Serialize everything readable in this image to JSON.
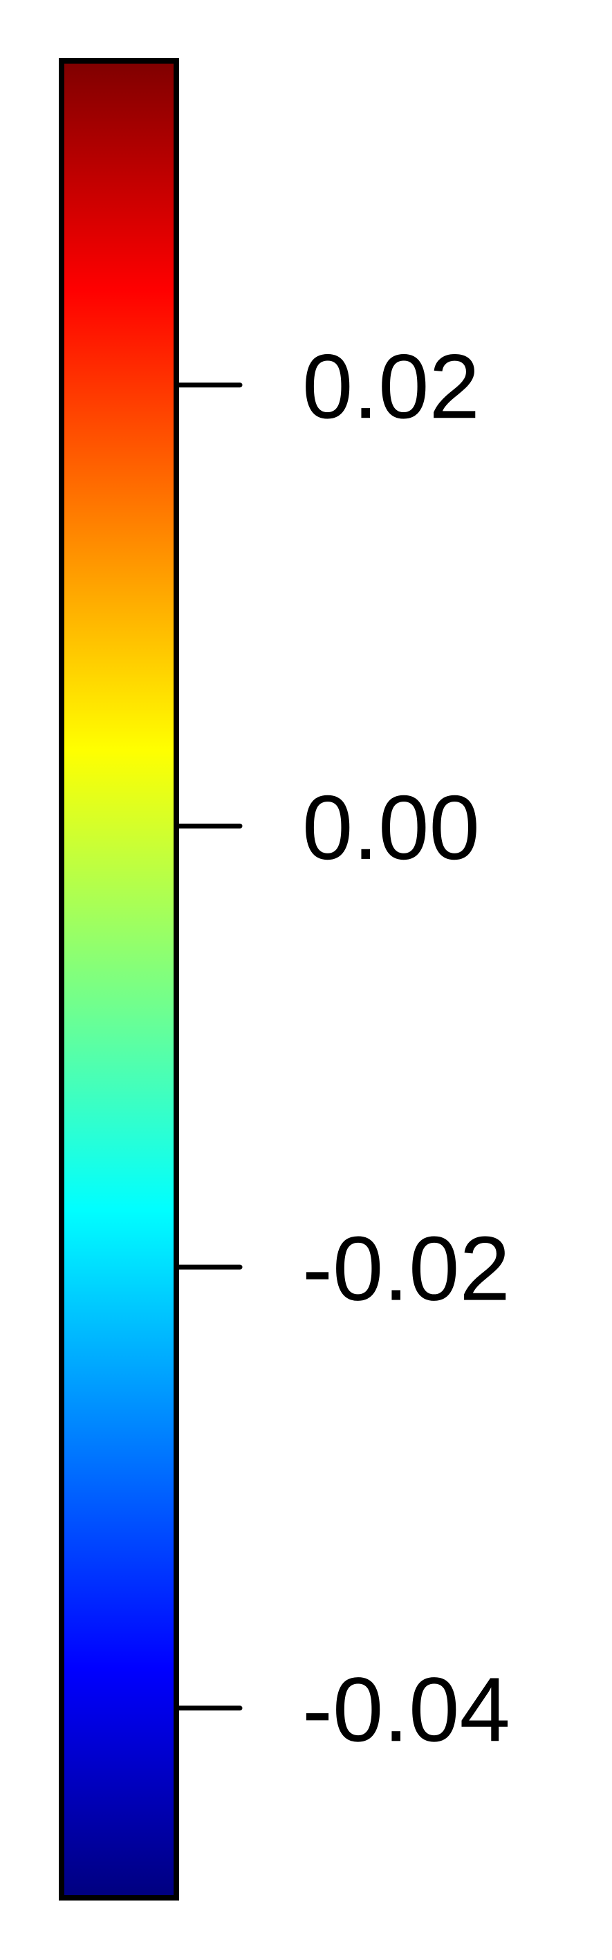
{
  "chart_data": {
    "type": "colorbar",
    "orientation": "vertical",
    "colormap": "jet",
    "range": [
      -0.0486,
      0.0347
    ],
    "ticks": [
      {
        "value": 0.02,
        "label": "0.02"
      },
      {
        "value": 0.0,
        "label": "0.00"
      },
      {
        "value": -0.02,
        "label": "-0.02"
      },
      {
        "value": -0.04,
        "label": "-0.04"
      }
    ],
    "colors": {
      "stops": [
        "#00007f",
        "#0000ff",
        "#007fff",
        "#00ffff",
        "#7fff7f",
        "#ffff00",
        "#ff7f00",
        "#ff0000",
        "#7f0000"
      ],
      "outline": "#000000",
      "background": "#ffffff"
    }
  }
}
